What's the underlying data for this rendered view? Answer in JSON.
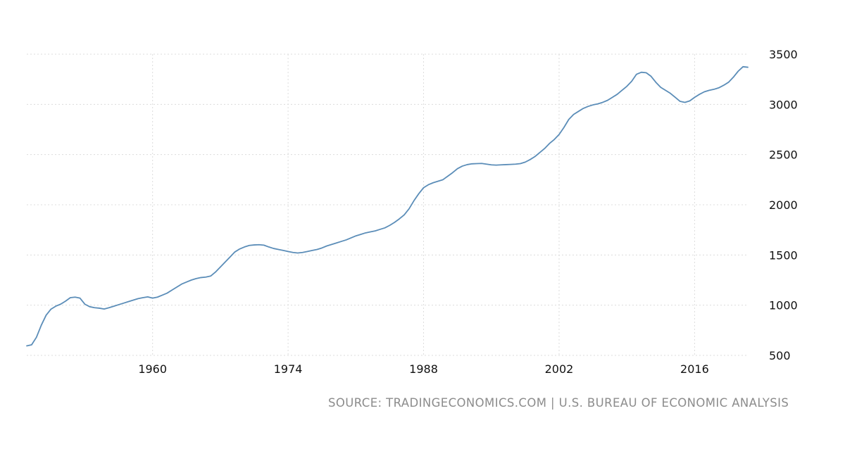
{
  "chart_data": {
    "type": "line",
    "title": "",
    "xlabel": "",
    "ylabel": "",
    "x_ticks": [
      "1960",
      "1974",
      "1988",
      "2002",
      "2016"
    ],
    "y_ticks": [
      "500",
      "1000",
      "1500",
      "2000",
      "2500",
      "3000",
      "3500"
    ],
    "xlim": [
      1947,
      2021.5
    ],
    "ylim": [
      500,
      3500
    ],
    "grid": true,
    "legend": "none",
    "line_color": "#5b8db8",
    "series": [
      {
        "values": [
          [
            1947.0,
            595
          ],
          [
            1947.5,
            605
          ],
          [
            1948.0,
            680
          ],
          [
            1948.5,
            800
          ],
          [
            1949.0,
            900
          ],
          [
            1949.5,
            960
          ],
          [
            1950.0,
            990
          ],
          [
            1950.5,
            1010
          ],
          [
            1951.0,
            1040
          ],
          [
            1951.5,
            1075
          ],
          [
            1952.0,
            1080
          ],
          [
            1952.5,
            1070
          ],
          [
            1953.0,
            1010
          ],
          [
            1953.5,
            985
          ],
          [
            1954.0,
            975
          ],
          [
            1954.5,
            970
          ],
          [
            1955.0,
            962
          ],
          [
            1955.5,
            975
          ],
          [
            1956.0,
            990
          ],
          [
            1956.5,
            1005
          ],
          [
            1957.0,
            1020
          ],
          [
            1957.5,
            1035
          ],
          [
            1958.0,
            1050
          ],
          [
            1958.5,
            1065
          ],
          [
            1959.0,
            1075
          ],
          [
            1959.5,
            1083
          ],
          [
            1960.0,
            1070
          ],
          [
            1960.5,
            1080
          ],
          [
            1961.0,
            1100
          ],
          [
            1961.5,
            1120
          ],
          [
            1962.0,
            1150
          ],
          [
            1962.5,
            1180
          ],
          [
            1963.0,
            1210
          ],
          [
            1963.5,
            1230
          ],
          [
            1964.0,
            1250
          ],
          [
            1964.5,
            1265
          ],
          [
            1965.0,
            1275
          ],
          [
            1965.5,
            1280
          ],
          [
            1966.0,
            1290
          ],
          [
            1966.5,
            1330
          ],
          [
            1967.0,
            1380
          ],
          [
            1967.5,
            1430
          ],
          [
            1968.0,
            1480
          ],
          [
            1968.5,
            1530
          ],
          [
            1969.0,
            1560
          ],
          [
            1969.5,
            1580
          ],
          [
            1970.0,
            1595
          ],
          [
            1970.5,
            1600
          ],
          [
            1971.0,
            1602
          ],
          [
            1971.5,
            1598
          ],
          [
            1972.0,
            1580
          ],
          [
            1972.5,
            1565
          ],
          [
            1973.0,
            1555
          ],
          [
            1973.5,
            1545
          ],
          [
            1974.0,
            1535
          ],
          [
            1974.5,
            1525
          ],
          [
            1975.0,
            1520
          ],
          [
            1975.5,
            1525
          ],
          [
            1976.0,
            1535
          ],
          [
            1976.5,
            1545
          ],
          [
            1977.0,
            1555
          ],
          [
            1977.5,
            1570
          ],
          [
            1978.0,
            1590
          ],
          [
            1978.5,
            1605
          ],
          [
            1979.0,
            1620
          ],
          [
            1979.5,
            1635
          ],
          [
            1980.0,
            1650
          ],
          [
            1980.5,
            1670
          ],
          [
            1981.0,
            1690
          ],
          [
            1981.5,
            1705
          ],
          [
            1982.0,
            1720
          ],
          [
            1982.5,
            1730
          ],
          [
            1983.0,
            1740
          ],
          [
            1983.5,
            1755
          ],
          [
            1984.0,
            1770
          ],
          [
            1984.5,
            1795
          ],
          [
            1985.0,
            1825
          ],
          [
            1985.5,
            1860
          ],
          [
            1986.0,
            1900
          ],
          [
            1986.5,
            1960
          ],
          [
            1987.0,
            2040
          ],
          [
            1987.5,
            2110
          ],
          [
            1988.0,
            2170
          ],
          [
            1988.5,
            2200
          ],
          [
            1989.0,
            2220
          ],
          [
            1989.5,
            2235
          ],
          [
            1990.0,
            2250
          ],
          [
            1990.5,
            2285
          ],
          [
            1991.0,
            2320
          ],
          [
            1991.5,
            2360
          ],
          [
            1992.0,
            2385
          ],
          [
            1992.5,
            2400
          ],
          [
            1993.0,
            2408
          ],
          [
            1993.5,
            2410
          ],
          [
            1994.0,
            2412
          ],
          [
            1994.5,
            2405
          ],
          [
            1995.0,
            2398
          ],
          [
            1995.5,
            2395
          ],
          [
            1996.0,
            2398
          ],
          [
            1996.5,
            2400
          ],
          [
            1997.0,
            2402
          ],
          [
            1997.5,
            2405
          ],
          [
            1998.0,
            2410
          ],
          [
            1998.5,
            2425
          ],
          [
            1999.0,
            2450
          ],
          [
            1999.5,
            2480
          ],
          [
            2000.0,
            2520
          ],
          [
            2000.5,
            2560
          ],
          [
            2001.0,
            2610
          ],
          [
            2001.5,
            2650
          ],
          [
            2002.0,
            2700
          ],
          [
            2002.5,
            2770
          ],
          [
            2003.0,
            2850
          ],
          [
            2003.5,
            2900
          ],
          [
            2004.0,
            2930
          ],
          [
            2004.5,
            2960
          ],
          [
            2005.0,
            2980
          ],
          [
            2005.5,
            2995
          ],
          [
            2006.0,
            3005
          ],
          [
            2006.5,
            3020
          ],
          [
            2007.0,
            3040
          ],
          [
            2007.5,
            3070
          ],
          [
            2008.0,
            3100
          ],
          [
            2008.5,
            3140
          ],
          [
            2009.0,
            3180
          ],
          [
            2009.5,
            3230
          ],
          [
            2010.0,
            3300
          ],
          [
            2010.5,
            3320
          ],
          [
            2011.0,
            3315
          ],
          [
            2011.5,
            3280
          ],
          [
            2012.0,
            3220
          ],
          [
            2012.5,
            3170
          ],
          [
            2013.0,
            3140
          ],
          [
            2013.5,
            3110
          ],
          [
            2014.0,
            3070
          ],
          [
            2014.5,
            3030
          ],
          [
            2015.0,
            3020
          ],
          [
            2015.5,
            3035
          ],
          [
            2016.0,
            3070
          ],
          [
            2016.5,
            3100
          ],
          [
            2017.0,
            3125
          ],
          [
            2017.5,
            3140
          ],
          [
            2018.0,
            3150
          ],
          [
            2018.5,
            3165
          ],
          [
            2019.0,
            3190
          ],
          [
            2019.5,
            3220
          ],
          [
            2020.0,
            3270
          ],
          [
            2020.5,
            3330
          ],
          [
            2021.0,
            3375
          ],
          [
            2021.5,
            3370
          ]
        ]
      }
    ]
  },
  "footer": {
    "source": "SOURCE: TRADINGECONOMICS.COM | U.S. BUREAU OF ECONOMIC ANALYSIS"
  }
}
